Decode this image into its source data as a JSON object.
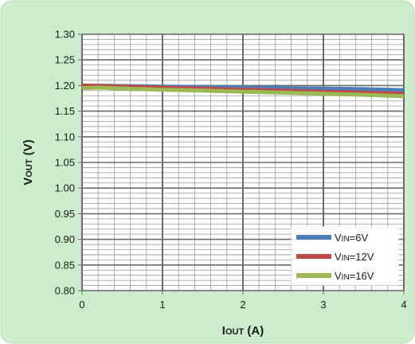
{
  "chart_data": {
    "type": "line",
    "title": "",
    "xlabel": {
      "main": "I",
      "sub": "OUT",
      "suffix": " (A)"
    },
    "ylabel": {
      "main": "V",
      "sub": "OUT",
      "suffix": " (V)"
    },
    "xlim": [
      0,
      4
    ],
    "ylim": [
      0.8,
      1.3
    ],
    "x_ticks": [
      "0",
      "1",
      "2",
      "3",
      "4"
    ],
    "y_ticks": [
      "0.80",
      "0.85",
      "0.90",
      "0.95",
      "1.00",
      "1.05",
      "1.10",
      "1.15",
      "1.20",
      "1.25",
      "1.30"
    ],
    "grid": true,
    "legend_position": "bottom-right",
    "background_color": "#cdeccd",
    "series": [
      {
        "legend": {
          "main": "V",
          "sub": "IN",
          "suffix": "=6V"
        },
        "color": "#4a7ebb",
        "x": [
          0,
          0.5,
          1,
          1.5,
          2,
          2.5,
          3,
          3.5,
          4
        ],
        "y": [
          1.2,
          1.199,
          1.198,
          1.197,
          1.196,
          1.195,
          1.194,
          1.193,
          1.191
        ]
      },
      {
        "legend": {
          "main": "V",
          "sub": "IN",
          "suffix": "=12V"
        },
        "color": "#be4b48",
        "x": [
          0,
          0.5,
          1,
          1.5,
          2,
          2.5,
          3,
          3.5,
          4
        ],
        "y": [
          1.2,
          1.198,
          1.196,
          1.194,
          1.192,
          1.19,
          1.188,
          1.186,
          1.184
        ]
      },
      {
        "legend": {
          "main": "V",
          "sub": "IN",
          "suffix": "=16V"
        },
        "color": "#98b954",
        "x": [
          0,
          0.2,
          0.5,
          1,
          1.5,
          2,
          2.5,
          3,
          3.5,
          4
        ],
        "y": [
          1.195,
          1.196,
          1.194,
          1.192,
          1.19,
          1.188,
          1.186,
          1.184,
          1.182,
          1.179
        ]
      }
    ]
  }
}
